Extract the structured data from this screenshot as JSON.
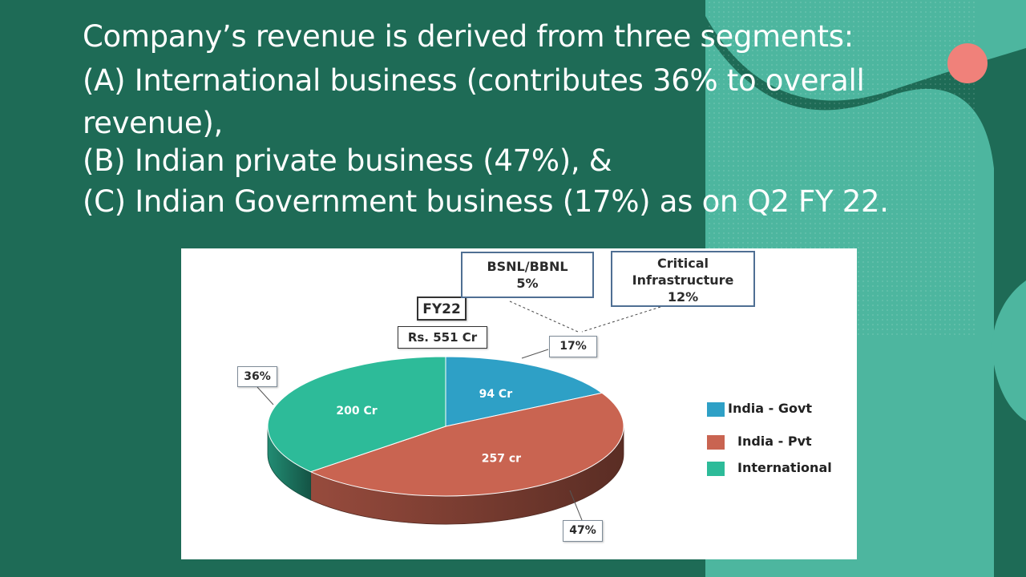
{
  "title_lines": [
    "Company’s revenue is derived from three segments:",
    "(A) International business (contributes 36% to overall",
    "revenue),",
    "(B) Indian private business (47%), &",
    "(C) Indian Government business (17%) as on Q2 FY 22."
  ],
  "colors": {
    "background": "#1e6b56",
    "accent_teal": "#4db69f",
    "accent_pink": "#f0817a",
    "india_govt": "#2ea0c6",
    "india_pvt": "#c96451",
    "international": "#2dbb99"
  },
  "chart_data": {
    "type": "pie",
    "style": "3d",
    "period_label": "FY22",
    "total_label": "Rs. 551 Cr",
    "slices": [
      {
        "name": "India - Govt",
        "value": 94,
        "value_label": "94 Cr",
        "percent": 17,
        "percent_label": "17%",
        "color": "#2ea0c6"
      },
      {
        "name": "India - Pvt",
        "value": 257,
        "value_label": "257 cr",
        "percent": 47,
        "percent_label": "47%",
        "color": "#c96451"
      },
      {
        "name": "International",
        "value": 200,
        "value_label": "200 Cr",
        "percent": 36,
        "percent_label": "36%",
        "color": "#2dbb99"
      }
    ],
    "govt_breakdown": [
      {
        "name_lines": [
          "BSNL/BBNL"
        ],
        "percent_label": "5%"
      },
      {
        "name_lines": [
          "Critical",
          "Infrastructure"
        ],
        "percent_label": "12%"
      }
    ],
    "legend": {
      "position": "right",
      "items": [
        "India - Govt",
        "India - Pvt",
        "International"
      ]
    }
  }
}
